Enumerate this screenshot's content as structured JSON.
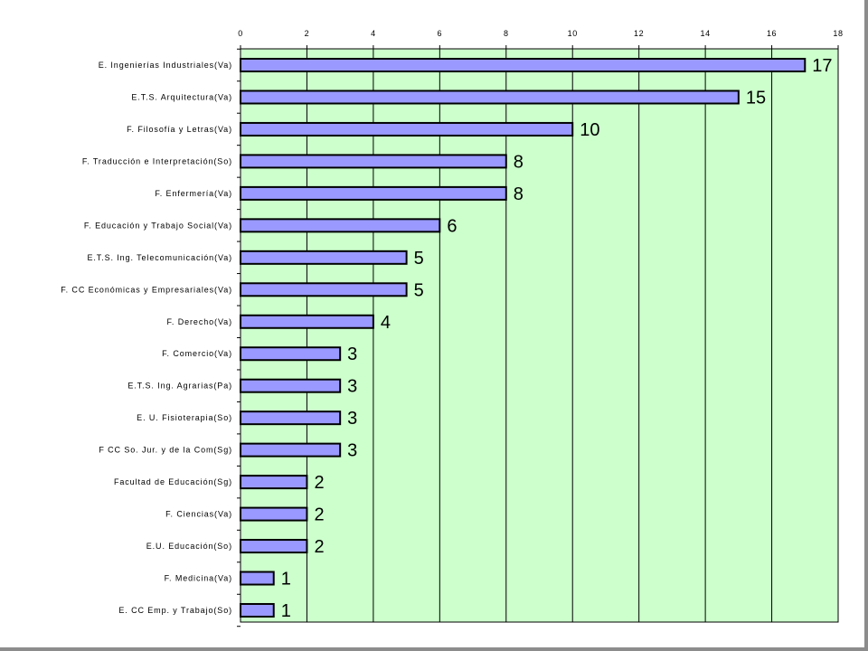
{
  "colors": {
    "plot_background": "#ccffcc",
    "bar_fill": "#9999ff",
    "bar_stroke": "#000000",
    "gridline": "#000000",
    "frame_shadow": "#8c8c8c"
  },
  "chart_data": {
    "type": "bar",
    "orientation": "horizontal",
    "title": "",
    "xlabel": "",
    "ylabel": "",
    "xlim": [
      0,
      18
    ],
    "x_ticks": [
      0,
      2,
      4,
      6,
      8,
      10,
      12,
      14,
      16,
      18
    ],
    "x_axis_position": "top",
    "grid": true,
    "legend": "none",
    "categories": [
      "E. Ingenierías Industriales(Va)",
      "E.T.S. Arquitectura(Va)",
      "F. Filosofía y Letras(Va)",
      "F. Traducción e Interpretación(So)",
      "F. Enfermería(Va)",
      "F. Educación y Trabajo Social(Va)",
      "E.T.S. Ing. Telecomunicación(Va)",
      "F. CC Económicas y Empresariales(Va)",
      "F. Derecho(Va)",
      "F. Comercio(Va)",
      "E.T.S. Ing. Agrarias(Pa)",
      "E. U. Fisioterapia(So)",
      "F CC So. Jur. y de la Com(Sg)",
      "Facultad de Educación(Sg)",
      "F. Ciencias(Va)",
      "E.U. Educación(So)",
      "F. Medicina(Va)",
      "E. CC Emp. y Trabajo(So)"
    ],
    "values": [
      17,
      15,
      10,
      8,
      8,
      6,
      5,
      5,
      4,
      3,
      3,
      3,
      3,
      2,
      2,
      2,
      1,
      1
    ],
    "data_labels": [
      "17",
      "15",
      "10",
      "8",
      "8",
      "6",
      "5",
      "5",
      "4",
      "3",
      "3",
      "3",
      "3",
      "2",
      "2",
      "2",
      "1",
      "1"
    ]
  }
}
